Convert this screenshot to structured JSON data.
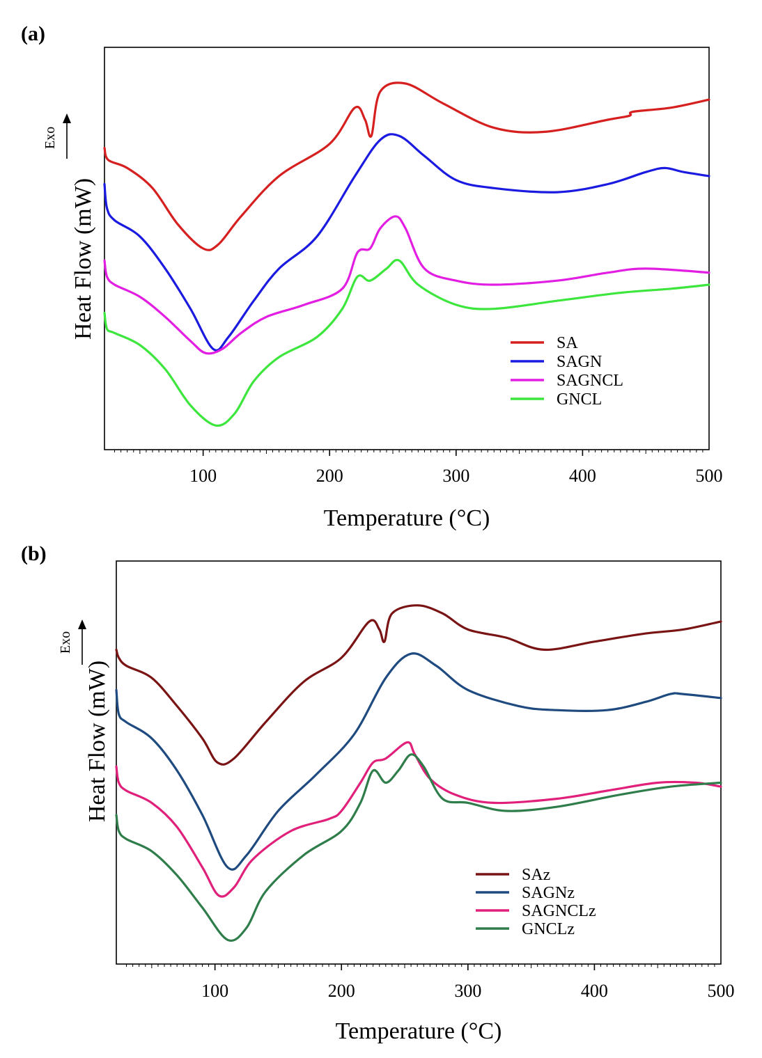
{
  "chart_data": [
    {
      "type": "line",
      "panel_label": "(a)",
      "xlabel": "Temperature (°C)",
      "ylabel": "Heat Flow (mW)",
      "exo_label": "Exo",
      "xlim": [
        22,
        500
      ],
      "ylim": [
        0,
        100
      ],
      "x_ticks": [
        100,
        200,
        300,
        400,
        500
      ],
      "x_tick_labels": [
        "100",
        "200",
        "300",
        "400",
        "500"
      ],
      "grid": false,
      "legend_position": "lower-right",
      "series": [
        {
          "name": "SA",
          "color": "#d62020",
          "x": [
            22,
            25,
            40,
            60,
            80,
            100,
            112,
            130,
            160,
            200,
            220,
            228,
            233,
            240,
            260,
            290,
            330,
            370,
            420,
            437,
            440,
            470,
            500
          ],
          "y": [
            75,
            72,
            70,
            65,
            56,
            50,
            51,
            58,
            68,
            76,
            85,
            82,
            78,
            89,
            91,
            86,
            80,
            79,
            82,
            83,
            84,
            85,
            87
          ]
        },
        {
          "name": "SAGN",
          "color": "#1a1ae0",
          "x": [
            22,
            24,
            30,
            50,
            70,
            90,
            108,
            120,
            140,
            160,
            190,
            220,
            240,
            255,
            275,
            300,
            330,
            380,
            420,
            450,
            465,
            480,
            500
          ],
          "y": [
            66,
            60,
            57,
            53,
            45,
            35,
            25,
            28,
            37,
            45,
            53,
            68,
            77,
            78,
            73,
            67,
            65,
            64,
            66,
            69,
            70,
            69,
            68
          ]
        },
        {
          "name": "SAGNCL",
          "color": "#e21ee2",
          "x": [
            22,
            24,
            30,
            50,
            70,
            90,
            102,
            115,
            130,
            150,
            180,
            210,
            222,
            232,
            240,
            252,
            260,
            275,
            300,
            330,
            380,
            420,
            450,
            500
          ],
          "y": [
            47,
            43,
            41,
            38,
            33,
            27,
            24,
            25,
            29,
            33,
            36,
            40,
            49,
            50,
            55,
            58,
            55,
            45,
            42,
            41,
            42,
            44,
            45,
            44
          ]
        },
        {
          "name": "GNCL",
          "color": "#3ce63c",
          "x": [
            22,
            24,
            30,
            50,
            70,
            90,
            110,
            125,
            140,
            160,
            190,
            210,
            222,
            232,
            245,
            255,
            270,
            300,
            330,
            380,
            430,
            470,
            500
          ],
          "y": [
            34,
            30,
            29,
            26,
            20,
            11,
            6,
            9,
            17,
            23,
            28,
            35,
            43,
            42,
            45,
            47,
            41,
            36,
            35,
            37,
            39,
            40,
            41
          ]
        }
      ]
    },
    {
      "type": "line",
      "panel_label": "(b)",
      "xlabel": "Temperature (°C)",
      "ylabel": "Heat Flow (mW)",
      "exo_label": "Exo",
      "xlim": [
        22,
        500
      ],
      "ylim": [
        0,
        100
      ],
      "x_ticks": [
        100,
        200,
        300,
        400,
        500
      ],
      "x_tick_labels": [
        "100",
        "200",
        "300",
        "400",
        "500"
      ],
      "grid": false,
      "legend_position": "lower-right",
      "series": [
        {
          "name": "SAz",
          "color": "#7a1414",
          "x": [
            22,
            24,
            30,
            50,
            70,
            90,
            102,
            115,
            140,
            170,
            200,
            222,
            230,
            234,
            240,
            260,
            280,
            300,
            330,
            360,
            400,
            440,
            470,
            500
          ],
          "y": [
            78,
            76,
            74,
            71,
            64,
            56,
            50,
            51,
            60,
            70,
            76,
            85,
            83,
            80,
            87,
            89,
            87,
            83,
            81,
            78,
            80,
            82,
            83,
            85
          ]
        },
        {
          "name": "SAGNz",
          "color": "#1e4a80",
          "x": [
            22,
            24,
            30,
            50,
            70,
            90,
            110,
            125,
            150,
            180,
            210,
            235,
            255,
            275,
            300,
            340,
            370,
            410,
            440,
            460,
            470,
            500
          ],
          "y": [
            68,
            62,
            60,
            56,
            48,
            37,
            24,
            27,
            38,
            47,
            57,
            71,
            77,
            74,
            68,
            64,
            63,
            63,
            65,
            67,
            67,
            66
          ]
        },
        {
          "name": "SAGNCLz",
          "color": "#e0207a",
          "x": [
            22,
            24,
            30,
            50,
            70,
            90,
            103,
            115,
            130,
            160,
            190,
            200,
            215,
            225,
            235,
            252,
            258,
            270,
            290,
            320,
            370,
            410,
            450,
            480,
            500
          ],
          "y": [
            49,
            45,
            43,
            40,
            34,
            24,
            17,
            19,
            26,
            33,
            36,
            38,
            45,
            50,
            51,
            55,
            52,
            46,
            42,
            40,
            41,
            43,
            45,
            45,
            44
          ]
        },
        {
          "name": "GNCLz",
          "color": "#2e7d4a",
          "x": [
            22,
            24,
            30,
            50,
            70,
            90,
            110,
            125,
            140,
            170,
            200,
            215,
            225,
            235,
            245,
            255,
            265,
            280,
            300,
            330,
            370,
            420,
            460,
            500
          ],
          "y": [
            37,
            33,
            31,
            28,
            22,
            14,
            6,
            9,
            18,
            27,
            33,
            40,
            48,
            45,
            48,
            52,
            49,
            41,
            40,
            38,
            39,
            42,
            44,
            45
          ]
        }
      ]
    }
  ]
}
